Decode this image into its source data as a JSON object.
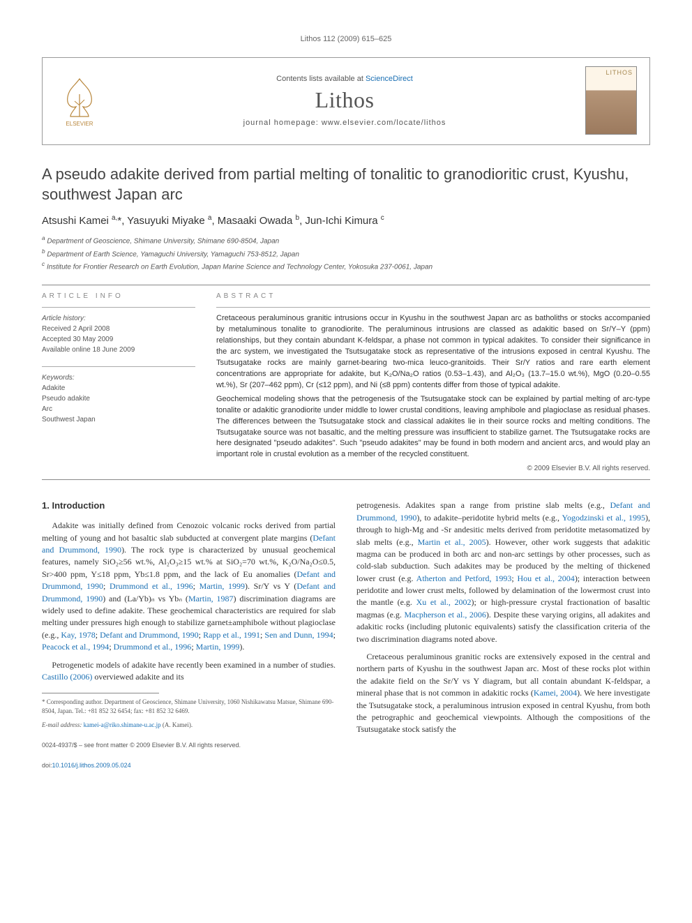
{
  "running_head": "Lithos 112 (2009) 615–625",
  "header": {
    "contents_prefix": "Contents lists available at ",
    "contents_link": "ScienceDirect",
    "journal": "Lithos",
    "homepage_prefix": "journal homepage: ",
    "homepage": "www.elsevier.com/locate/lithos",
    "cover_label": "LITHOS",
    "publisher": "ELSEVIER"
  },
  "title": "A pseudo adakite derived from partial melting of tonalitic to granodioritic crust, Kyushu, southwest Japan arc",
  "authors_html": "Atsushi Kamei <sup>a,</sup>*, Yasuyuki Miyake <sup>a</sup>, Masaaki Owada <sup>b</sup>, Jun-Ichi Kimura <sup>c</sup>",
  "affiliations": [
    "a Department of Geoscience, Shimane University, Shimane 690-8504, Japan",
    "b Department of Earth Science, Yamaguchi University, Yamaguchi 753-8512, Japan",
    "c Institute for Frontier Research on Earth Evolution, Japan Marine Science and Technology Center, Yokosuka 237-0061, Japan"
  ],
  "article_info": {
    "label": "ARTICLE INFO",
    "history_label": "Article history:",
    "received": "Received 2 April 2008",
    "accepted": "Accepted 30 May 2009",
    "online": "Available online 18 June 2009",
    "keywords_label": "Keywords:",
    "keywords": [
      "Adakite",
      "Pseudo adakite",
      "Arc",
      "Southwest Japan"
    ]
  },
  "abstract": {
    "label": "ABSTRACT",
    "p1": "Cretaceous peraluminous granitic intrusions occur in Kyushu in the southwest Japan arc as batholiths or stocks accompanied by metaluminous tonalite to granodiorite. The peraluminous intrusions are classed as adakitic based on Sr/Y–Y (ppm) relationships, but they contain abundant K-feldspar, a phase not common in typical adakites. To consider their significance in the arc system, we investigated the Tsutsugatake stock as representative of the intrusions exposed in central Kyushu. The Tsutsugatake rocks are mainly garnet-bearing two-mica leuco-granitoids. Their Sr/Y ratios and rare earth element concentrations are appropriate for adakite, but K₂O/Na₂O ratios (0.53–1.43), and Al₂O₃ (13.7–15.0 wt.%), MgO (0.20–0.55 wt.%), Sr (207–462 ppm), Cr (≤12 ppm), and Ni (≤8 ppm) contents differ from those of typical adakite.",
    "p2": "Geochemical modeling shows that the petrogenesis of the Tsutsugatake stock can be explained by partial melting of arc-type tonalite or adakitic granodiorite under middle to lower crustal conditions, leaving amphibole and plagioclase as residual phases. The differences between the Tsutsugatake stock and classical adakites lie in their source rocks and melting conditions. The Tsutsugatake source was not basaltic, and the melting pressure was insufficient to stabilize garnet. The Tsutsugatake rocks are here designated \"pseudo adakites\". Such \"pseudo adakites\" may be found in both modern and ancient arcs, and would play an important role in crustal evolution as a member of the recycled constituent.",
    "copyright": "© 2009 Elsevier B.V. All rights reserved."
  },
  "body": {
    "section_heading": "1. Introduction",
    "left_p1": "Adakite was initially defined from Cenozoic volcanic rocks derived from partial melting of young and hot basaltic slab subducted at convergent plate margins (Defant and Drummond, 1990). The rock type is characterized by unusual geochemical features, namely SiO₂≥56 wt.%, Al₂O₃≥15 wt.% at SiO₂=70 wt.%, K₂O/Na₂O≤0.5, Sr>400 ppm, Y≤18 ppm, Yb≤1.8 ppm, and the lack of Eu anomalies (Defant and Drummond, 1990; Drummond et al., 1996; Martin, 1999). Sr/Y vs Y (Defant and Drummond, 1990) and (La/Yb)ₙ vs Ybₙ (Martin, 1987) discrimination diagrams are widely used to define adakite. These geochemical characteristics are required for slab melting under pressures high enough to stabilize garnet±amphibole without plagioclase (e.g., Kay, 1978; Defant and Drummond, 1990; Rapp et al., 1991; Sen and Dunn, 1994; Peacock et al., 1994; Drummond et al., 1996; Martin, 1999).",
    "left_p2": "Petrogenetic models of adakite have recently been examined in a number of studies. Castillo (2006) overviewed adakite and its",
    "right_p1": "petrogenesis. Adakites span a range from pristine slab melts (e.g., Defant and Drummond, 1990), to adakite–peridotite hybrid melts (e.g., Yogodzinski et al., 1995), through to high-Mg and -Sr andesitic melts derived from peridotite metasomatized by slab melts (e.g., Martin et al., 2005). However, other work suggests that adakitic magma can be produced in both arc and non-arc settings by other processes, such as cold-slab subduction. Such adakites may be produced by the melting of thickened lower crust (e.g. Atherton and Petford, 1993; Hou et al., 2004); interaction between peridotite and lower crust melts, followed by delamination of the lowermost crust into the mantle (e.g. Xu et al., 2002); or high-pressure crystal fractionation of basaltic magmas (e.g. Macpherson et al., 2006). Despite these varying origins, all adakites and adakitic rocks (including plutonic equivalents) satisfy the classification criteria of the two discrimination diagrams noted above.",
    "right_p2": "Cretaceous peraluminous granitic rocks are extensively exposed in the central and northern parts of Kyushu in the southwest Japan arc. Most of these rocks plot within the adakite field on the Sr/Y vs Y diagram, but all contain abundant K-feldspar, a mineral phase that is not common in adakitic rocks (Kamei, 2004). We here investigate the Tsutsugatake stock, a peraluminous intrusion exposed in central Kyushu, from both the petrographic and geochemical viewpoints. Although the compositions of the Tsutsugatake stock satisfy the"
  },
  "footnote": {
    "corr": "* Corresponding author. Department of Geoscience, Shimane University, 1060 Nishikawatsu Matsue, Shimane 690-8504, Japan. Tel.: +81 852 32 6454; fax: +81 852 32 6469.",
    "email_label": "E-mail address: ",
    "email": "kamei-a@riko.shimane-u.ac.jp",
    "email_suffix": " (A. Kamei)."
  },
  "footer": {
    "line1": "0024-4937/$ – see front matter © 2009 Elsevier B.V. All rights reserved.",
    "doi_label": "doi:",
    "doi": "10.1016/j.lithos.2009.05.024"
  },
  "colors": {
    "link": "#1a6fb3",
    "text": "#333333",
    "muted": "#555555",
    "border": "#999999"
  }
}
